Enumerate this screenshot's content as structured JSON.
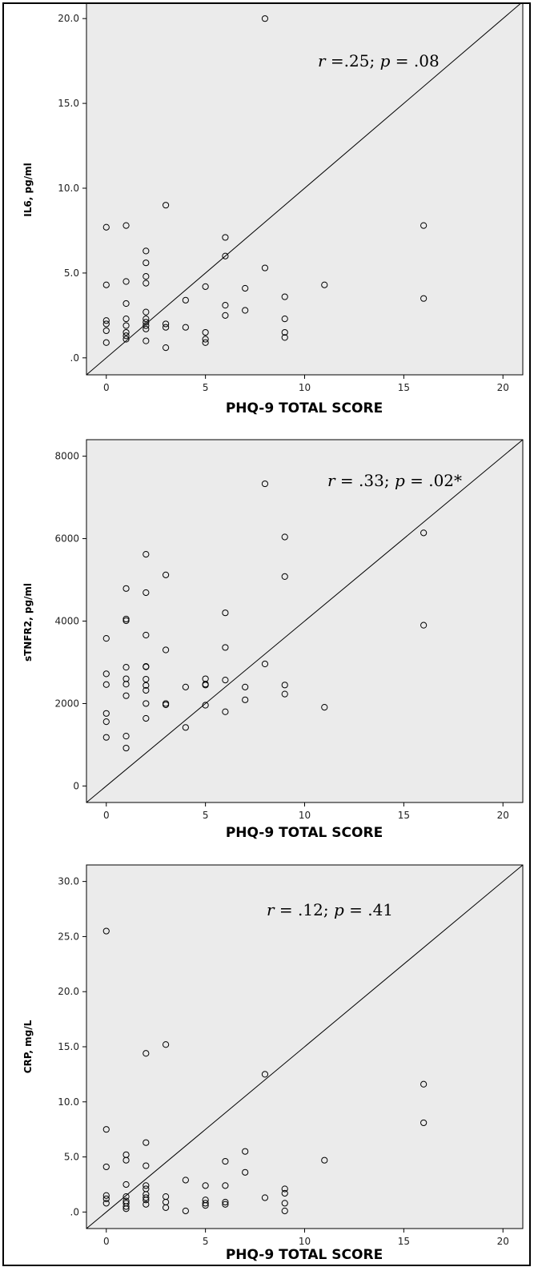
{
  "chart_data": [
    {
      "type": "scatter",
      "xlabel": "PHQ-9 TOTAL SCORE",
      "ylabel": "IL6, pg/ml",
      "xlim": [
        -1,
        21
      ],
      "ylim": [
        -1,
        21
      ],
      "xticks": [
        0,
        5,
        10,
        15,
        20
      ],
      "xtick_labels": [
        "0",
        "5",
        "10",
        "15",
        "20"
      ],
      "yticks": [
        0,
        5,
        10,
        15,
        20
      ],
      "ytick_labels": [
        ".0",
        "5.0",
        "10.0",
        "15.0",
        "20.0"
      ],
      "annotation": {
        "r_label": "r",
        "r_value": " =.25; ",
        "p_label": "p",
        "p_value": " = .08"
      },
      "reference_line": {
        "from": [
          -1,
          -1
        ],
        "to": [
          21,
          21
        ]
      },
      "grid": false,
      "points": [
        [
          0,
          7.7
        ],
        [
          0,
          4.3
        ],
        [
          0,
          2.2
        ],
        [
          0,
          2.0
        ],
        [
          0,
          1.6
        ],
        [
          0,
          0.9
        ],
        [
          1,
          7.8
        ],
        [
          1,
          4.5
        ],
        [
          1,
          3.2
        ],
        [
          1,
          2.3
        ],
        [
          1,
          1.9
        ],
        [
          1,
          1.5
        ],
        [
          1,
          1.3
        ],
        [
          1,
          1.1
        ],
        [
          2,
          6.3
        ],
        [
          2,
          5.6
        ],
        [
          2,
          4.8
        ],
        [
          2,
          4.4
        ],
        [
          2,
          2.7
        ],
        [
          2,
          2.3
        ],
        [
          2,
          2.1
        ],
        [
          2,
          1.9
        ],
        [
          2,
          1.7
        ],
        [
          2,
          1.0
        ],
        [
          3,
          9.0
        ],
        [
          3,
          2.0
        ],
        [
          3,
          1.8
        ],
        [
          3,
          0.6
        ],
        [
          4,
          3.4
        ],
        [
          4,
          1.8
        ],
        [
          5,
          4.2
        ],
        [
          5,
          1.5
        ],
        [
          5,
          1.1
        ],
        [
          5,
          0.9
        ],
        [
          6,
          7.1
        ],
        [
          6,
          6.0
        ],
        [
          6,
          3.1
        ],
        [
          6,
          2.5
        ],
        [
          7,
          4.1
        ],
        [
          7,
          2.8
        ],
        [
          8,
          20.0
        ],
        [
          8,
          5.3
        ],
        [
          9,
          3.6
        ],
        [
          9,
          2.3
        ],
        [
          9,
          1.5
        ],
        [
          9,
          1.2
        ],
        [
          11,
          4.3
        ],
        [
          16,
          7.8
        ],
        [
          16,
          3.5
        ]
      ]
    },
    {
      "type": "scatter",
      "xlabel": "PHQ-9 TOTAL SCORE",
      "ylabel": "sTNFR2, pg/ml",
      "xlim": [
        -1,
        21
      ],
      "ylim": [
        -400,
        8400
      ],
      "xticks": [
        0,
        5,
        10,
        15,
        20
      ],
      "xtick_labels": [
        "0",
        "5",
        "10",
        "15",
        "20"
      ],
      "yticks": [
        0,
        2000,
        4000,
        6000,
        8000
      ],
      "ytick_labels": [
        "0",
        "2000",
        "4000",
        "6000",
        "8000"
      ],
      "annotation": {
        "r_label": "r",
        "r_value": " = .33; ",
        "p_label": "p",
        "p_value": " = .02*"
      },
      "reference_line": {
        "from": [
          -1,
          -400
        ],
        "to": [
          21,
          8400
        ]
      },
      "grid": false,
      "points": [
        [
          0,
          3580
        ],
        [
          0,
          2720
        ],
        [
          0,
          2460
        ],
        [
          0,
          1760
        ],
        [
          0,
          1560
        ],
        [
          0,
          1180
        ],
        [
          1,
          4790
        ],
        [
          1,
          4050
        ],
        [
          1,
          4010
        ],
        [
          1,
          2880
        ],
        [
          1,
          2600
        ],
        [
          1,
          2470
        ],
        [
          1,
          2190
        ],
        [
          1,
          1210
        ],
        [
          1,
          920
        ],
        [
          2,
          5620
        ],
        [
          2,
          4690
        ],
        [
          2,
          3660
        ],
        [
          2,
          2900
        ],
        [
          2,
          2890
        ],
        [
          2,
          2590
        ],
        [
          2,
          2440
        ],
        [
          2,
          2320
        ],
        [
          2,
          2000
        ],
        [
          2,
          1640
        ],
        [
          3,
          5120
        ],
        [
          3,
          3300
        ],
        [
          3,
          2000
        ],
        [
          3,
          1970
        ],
        [
          4,
          2400
        ],
        [
          4,
          1420
        ],
        [
          5,
          2600
        ],
        [
          5,
          2470
        ],
        [
          5,
          2450
        ],
        [
          5,
          1960
        ],
        [
          6,
          4200
        ],
        [
          6,
          3360
        ],
        [
          6,
          2570
        ],
        [
          6,
          1800
        ],
        [
          7,
          2400
        ],
        [
          7,
          2090
        ],
        [
          8,
          7330
        ],
        [
          8,
          2960
        ],
        [
          9,
          6040
        ],
        [
          9,
          5080
        ],
        [
          9,
          2450
        ],
        [
          9,
          2230
        ],
        [
          11,
          1910
        ],
        [
          16,
          6140
        ],
        [
          16,
          3900
        ]
      ]
    },
    {
      "type": "scatter",
      "xlabel": "PHQ-9 TOTAL SCORE",
      "ylabel": "CRP, mg/L",
      "xlim": [
        -1,
        21
      ],
      "ylim": [
        -1.5,
        31.5
      ],
      "xticks": [
        0,
        5,
        10,
        15,
        20
      ],
      "xtick_labels": [
        "0",
        "5",
        "10",
        "15",
        "20"
      ],
      "yticks": [
        0,
        5,
        10,
        15,
        20,
        25,
        30
      ],
      "ytick_labels": [
        ".0",
        "5.0",
        "10.0",
        "15.0",
        "20.0",
        "25.0",
        "30.0"
      ],
      "annotation": {
        "r_label": "r",
        "r_value": " = .12; ",
        "p_label": "p",
        "p_value": " = .41"
      },
      "reference_line": {
        "from": [
          -1,
          -1.5
        ],
        "to": [
          21,
          31.5
        ]
      },
      "grid": false,
      "points": [
        [
          0,
          25.5
        ],
        [
          0,
          7.5
        ],
        [
          0,
          4.1
        ],
        [
          0,
          1.5
        ],
        [
          0,
          1.2
        ],
        [
          0,
          0.8
        ],
        [
          1,
          5.2
        ],
        [
          1,
          4.7
        ],
        [
          1,
          2.5
        ],
        [
          1,
          1.4
        ],
        [
          1,
          1.0
        ],
        [
          1,
          0.8
        ],
        [
          1,
          0.5
        ],
        [
          1,
          0.3
        ],
        [
          2,
          14.4
        ],
        [
          2,
          6.3
        ],
        [
          2,
          4.2
        ],
        [
          2,
          2.4
        ],
        [
          2,
          2.1
        ],
        [
          2,
          1.6
        ],
        [
          2,
          1.3
        ],
        [
          2,
          1.1
        ],
        [
          2,
          0.7
        ],
        [
          3,
          15.2
        ],
        [
          3,
          1.4
        ],
        [
          3,
          0.9
        ],
        [
          3,
          0.4
        ],
        [
          4,
          2.9
        ],
        [
          4,
          0.1
        ],
        [
          5,
          2.4
        ],
        [
          5,
          1.1
        ],
        [
          5,
          0.8
        ],
        [
          5,
          0.6
        ],
        [
          6,
          4.6
        ],
        [
          6,
          2.4
        ],
        [
          6,
          0.9
        ],
        [
          6,
          0.7
        ],
        [
          7,
          5.5
        ],
        [
          7,
          3.6
        ],
        [
          8,
          12.5
        ],
        [
          8,
          1.3
        ],
        [
          9,
          2.1
        ],
        [
          9,
          1.7
        ],
        [
          9,
          0.8
        ],
        [
          9,
          0.1
        ],
        [
          11,
          4.7
        ],
        [
          16,
          11.6
        ],
        [
          16,
          8.1
        ]
      ]
    }
  ]
}
